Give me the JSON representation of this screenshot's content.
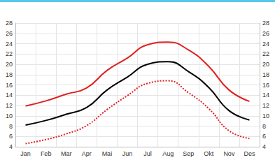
{
  "chart_data": {
    "type": "line",
    "categories": [
      "Jan",
      "Feb",
      "Mar",
      "Apr",
      "Mai",
      "Jun",
      "Jul",
      "Aug",
      "Sep",
      "Okt",
      "Nov",
      "Des"
    ],
    "series": [
      {
        "color": "#e02020",
        "line_style": "solid",
        "values": [
          11.9,
          12.9,
          14.2,
          15.4,
          18.8,
          21.2,
          23.8,
          24.3,
          22.8,
          19.6,
          15.0,
          12.8
        ]
      },
      {
        "color": "#000000",
        "line_style": "solid",
        "values": [
          8.2,
          9.1,
          10.3,
          11.6,
          15.0,
          17.5,
          20.0,
          20.5,
          18.6,
          15.5,
          11.0,
          9.2
        ]
      },
      {
        "color": "#e02020",
        "line_style": "dotted",
        "values": [
          4.6,
          5.4,
          6.5,
          8.1,
          11.2,
          13.9,
          16.3,
          16.8,
          14.5,
          11.4,
          7.1,
          5.6
        ]
      }
    ],
    "ylim": [
      4,
      28
    ],
    "yticks": [
      4,
      6,
      8,
      10,
      12,
      14,
      16,
      18,
      20,
      22,
      24,
      26,
      28
    ],
    "y2lim": [
      4,
      28
    ],
    "y2ticks": [
      4,
      6,
      8,
      10,
      12,
      14,
      16,
      18,
      20,
      22,
      24,
      26,
      28
    ],
    "grid": true
  }
}
